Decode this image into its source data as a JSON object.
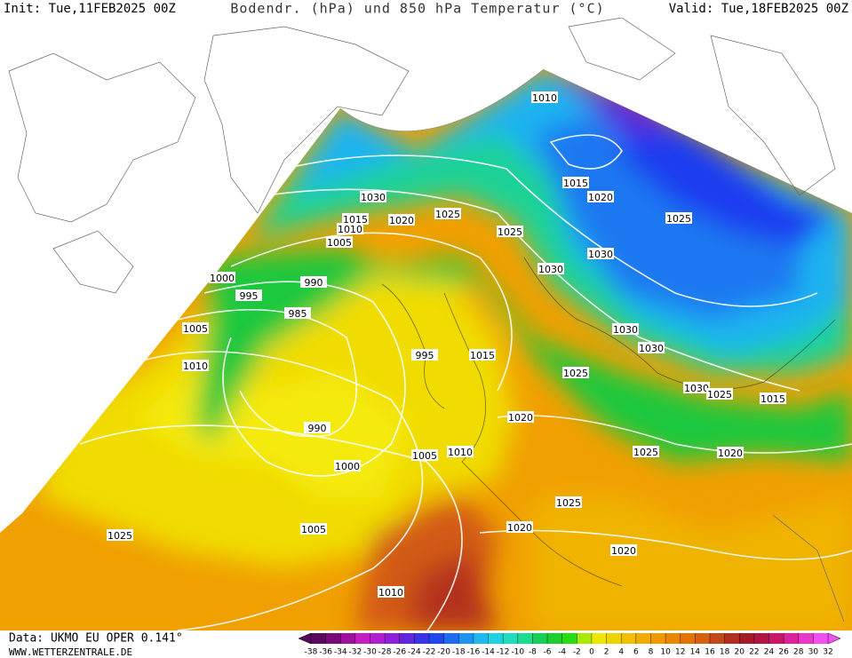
{
  "header": {
    "init": "Init: Tue,11FEB2025 00Z",
    "title": "Bodendr. (hPa) und 850 hPa Temperatur (°C)",
    "valid": "Valid: Tue,18FEB2025 00Z"
  },
  "footer": {
    "source": "Data: UKMO EU OPER 0.141°",
    "website": "WWW.WETTERZENTRALE.DE"
  },
  "isobar_labels": [
    "1010",
    "1030",
    "1015",
    "1010",
    "1005",
    "1020",
    "1025",
    "1025",
    "1015",
    "1020",
    "1025",
    "1030",
    "1030",
    "1000",
    "995",
    "990",
    "985",
    "1005",
    "1010",
    "995",
    "1015",
    "1030",
    "1030",
    "1025",
    "1030",
    "1025",
    "1015",
    "1020",
    "990",
    "1000",
    "1005",
    "1010",
    "1020",
    "1025",
    "1025",
    "1020",
    "1020",
    "1005",
    "1025",
    "1010"
  ],
  "colorbar": {
    "ticks": [
      -38,
      -36,
      -34,
      -32,
      -30,
      -28,
      -26,
      -24,
      -22,
      -20,
      -18,
      -16,
      -14,
      -12,
      -10,
      -8,
      -6,
      -4,
      -2,
      0,
      2,
      4,
      6,
      8,
      10,
      12,
      14,
      16,
      18,
      20,
      22,
      24,
      26,
      28,
      30,
      32
    ],
    "colors": [
      "#5a0a5a",
      "#8c0a8c",
      "#c81ec8",
      "#a01edc",
      "#5a28dc",
      "#1e3cf0",
      "#1e78f0",
      "#1eb4f0",
      "#1edcdc",
      "#1edc96",
      "#14c83c",
      "#28dc14",
      "#f0f000",
      "#f0d200",
      "#f0b400",
      "#f09600",
      "#e67800",
      "#d25a14",
      "#b4321e",
      "#a0142d",
      "#c81464",
      "#e628b4",
      "#f050f0"
    ]
  }
}
